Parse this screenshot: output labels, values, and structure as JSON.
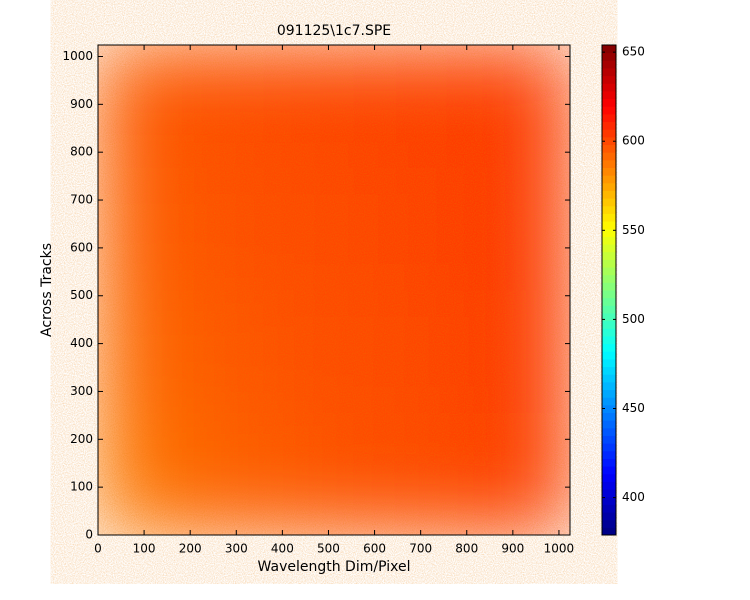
{
  "chart_data": {
    "type": "heatmap",
    "title": "091125\\1c7.SPE",
    "xlabel": "Wavelength Dim/Pixel",
    "ylabel": "Across Tracks",
    "x": [
      64,
      192,
      320,
      448,
      576,
      704,
      832,
      960
    ],
    "y": [
      128,
      384,
      640,
      896
    ],
    "values": [
      [
        587,
        592,
        595,
        597,
        599,
        600,
        602,
        605
      ],
      [
        591,
        595,
        597,
        599,
        600,
        601,
        603,
        606
      ],
      [
        594,
        597,
        599,
        600,
        601,
        602,
        604,
        606
      ],
      [
        596,
        598,
        600,
        601,
        602,
        603,
        604,
        606
      ]
    ],
    "xlim": [
      0,
      1024
    ],
    "ylim": [
      0,
      1024
    ],
    "xticks": [
      0,
      100,
      200,
      300,
      400,
      500,
      600,
      700,
      800,
      900,
      1000
    ],
    "yticks": [
      0,
      100,
      200,
      300,
      400,
      500,
      600,
      700,
      800,
      900,
      1000
    ],
    "colormap": "jet",
    "clim": [
      379,
      654
    ],
    "cticks": [
      400,
      450,
      500,
      550,
      600,
      650
    ]
  }
}
